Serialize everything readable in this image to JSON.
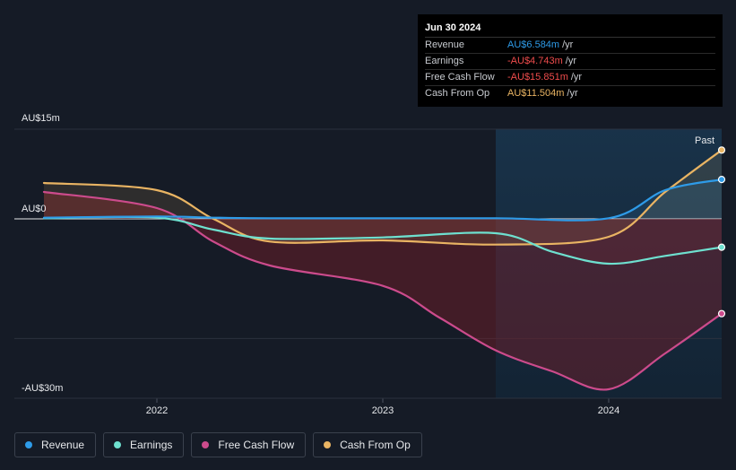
{
  "colors": {
    "revenue": "#2e9be8",
    "earnings": "#6ee0cf",
    "fcf": "#cc4b8c",
    "cfo": "#e9b463"
  },
  "tooltip": {
    "date": "Jun 30 2024",
    "rows": [
      {
        "label": "Revenue",
        "value": "AU$6.584m",
        "unit": "/yr",
        "color": "#2e9be8"
      },
      {
        "label": "Earnings",
        "value": "-AU$4.743m",
        "unit": "/yr",
        "color": "#ef4c4c"
      },
      {
        "label": "Free Cash Flow",
        "value": "-AU$15.851m",
        "unit": "/yr",
        "color": "#ef4c4c"
      },
      {
        "label": "Cash From Op",
        "value": "AU$11.504m",
        "unit": "/yr",
        "color": "#e9b463"
      }
    ]
  },
  "legend": [
    {
      "label": "Revenue",
      "color": "#2e9be8"
    },
    {
      "label": "Earnings",
      "color": "#6ee0cf"
    },
    {
      "label": "Free Cash Flow",
      "color": "#cc4b8c"
    },
    {
      "label": "Cash From Op",
      "color": "#e9b463"
    }
  ],
  "chart_data": {
    "type": "line",
    "past_label": "Past",
    "y_ticks": [
      {
        "value": 15,
        "label": "AU$15m"
      },
      {
        "value": 0,
        "label": "AU$0"
      },
      {
        "value": -30,
        "label": "-AU$30m"
      }
    ],
    "ylim": [
      -30,
      15
    ],
    "xlim": [
      2021.5,
      2024.5
    ],
    "x_ticks": [
      {
        "value": 2022,
        "label": "2022"
      },
      {
        "value": 2023,
        "label": "2023"
      },
      {
        "value": 2024,
        "label": "2024"
      }
    ],
    "past_start": 2023.5,
    "series": [
      {
        "name": "Revenue",
        "key": "revenue",
        "points": [
          [
            2021.5,
            0.2
          ],
          [
            2022.0,
            0.4
          ],
          [
            2022.25,
            0.2
          ],
          [
            2022.5,
            0.1
          ],
          [
            2023.0,
            0.1
          ],
          [
            2023.5,
            0.1
          ],
          [
            2024.0,
            0.1
          ],
          [
            2024.25,
            4.8
          ],
          [
            2024.5,
            6.584
          ]
        ]
      },
      {
        "name": "Earnings",
        "key": "earnings",
        "points": [
          [
            2021.5,
            0.1
          ],
          [
            2022.0,
            0.2
          ],
          [
            2022.25,
            -1.8
          ],
          [
            2022.5,
            -3.3
          ],
          [
            2023.0,
            -3.1
          ],
          [
            2023.5,
            -2.4
          ],
          [
            2023.75,
            -5.5
          ],
          [
            2024.0,
            -7.5
          ],
          [
            2024.25,
            -6.2
          ],
          [
            2024.5,
            -4.743
          ]
        ]
      },
      {
        "name": "Free Cash Flow",
        "key": "fcf",
        "points": [
          [
            2021.5,
            4.5
          ],
          [
            2022.0,
            1.8
          ],
          [
            2022.25,
            -3.8
          ],
          [
            2022.5,
            -7.8
          ],
          [
            2023.0,
            -11.2
          ],
          [
            2023.25,
            -16.5
          ],
          [
            2023.5,
            -22
          ],
          [
            2023.75,
            -25.5
          ],
          [
            2024.0,
            -28.5
          ],
          [
            2024.25,
            -22.5
          ],
          [
            2024.5,
            -15.851
          ]
        ]
      },
      {
        "name": "Cash From Op",
        "key": "cfo",
        "points": [
          [
            2021.5,
            6.0
          ],
          [
            2022.0,
            4.8
          ],
          [
            2022.25,
            0.0
          ],
          [
            2022.5,
            -3.8
          ],
          [
            2023.0,
            -3.6
          ],
          [
            2023.5,
            -4.3
          ],
          [
            2024.0,
            -3.0
          ],
          [
            2024.25,
            4.5
          ],
          [
            2024.5,
            11.504
          ]
        ]
      }
    ]
  }
}
